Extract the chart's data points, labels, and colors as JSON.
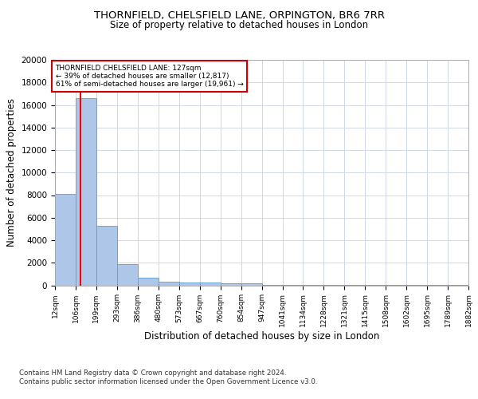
{
  "title1": "THORNFIELD, CHELSFIELD LANE, ORPINGTON, BR6 7RR",
  "title2": "Size of property relative to detached houses in London",
  "xlabel": "Distribution of detached houses by size in London",
  "ylabel": "Number of detached properties",
  "annotation_line1": "THORNFIELD CHELSFIELD LANE: 127sqm",
  "annotation_line2": "← 39% of detached houses are smaller (12,817)",
  "annotation_line3": "61% of semi-detached houses are larger (19,961) →",
  "footer1": "Contains HM Land Registry data © Crown copyright and database right 2024.",
  "footer2": "Contains public sector information licensed under the Open Government Licence v3.0.",
  "bar_edges": [
    12,
    106,
    199,
    293,
    386,
    480,
    573,
    667,
    760,
    854,
    947,
    1041,
    1134,
    1228,
    1321,
    1415,
    1508,
    1602,
    1695,
    1789,
    1882
  ],
  "bar_heights": [
    8100,
    16600,
    5300,
    1850,
    700,
    350,
    270,
    220,
    200,
    190,
    50,
    30,
    20,
    10,
    8,
    5,
    4,
    3,
    2,
    2
  ],
  "bar_color": "#aec6e8",
  "bar_edge_color": "#5a9fd4",
  "red_line_x": 127,
  "ylim": [
    0,
    20000
  ],
  "yticks": [
    0,
    2000,
    4000,
    6000,
    8000,
    10000,
    12000,
    14000,
    16000,
    18000,
    20000
  ],
  "background_color": "#ffffff",
  "grid_color": "#d0d8e8",
  "annotation_box_color": "#cc0000",
  "title1_fontsize": 9.5,
  "title2_fontsize": 8.5,
  "xlabel_fontsize": 8.5,
  "ylabel_fontsize": 8.5
}
